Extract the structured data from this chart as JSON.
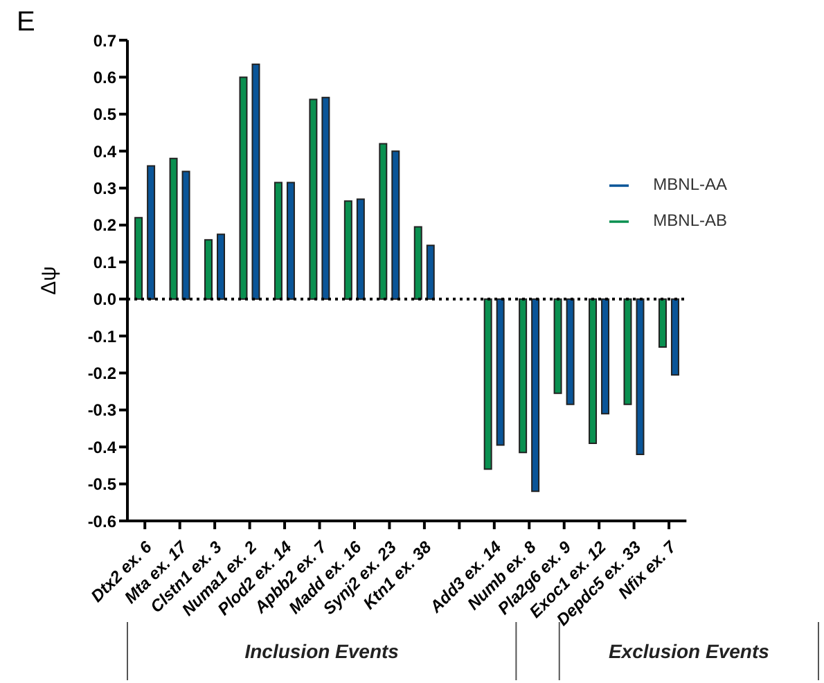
{
  "chart_data": {
    "type": "bar",
    "title": "E",
    "ylabel": "Δψ",
    "categories": [
      "Dtx2 ex. 6",
      "Mta ex. 17",
      "Clstn1 ex. 3",
      "Numa1 ex. 2",
      "Plod2 ex. 14",
      "Apbb2 ex. 7",
      "Madd ex. 16",
      "Synj2 ex. 23",
      "Ktn1 ex. 38",
      null,
      "Add3 ex. 14",
      "Numb ex. 8",
      "Pla2g6 ex. 9",
      "Exoc1 ex. 12",
      "Depdc5 ex. 33",
      "Nfix ex. 7"
    ],
    "series": [
      {
        "name": "MBNL-AB",
        "color": "#0a9050",
        "values": [
          0.22,
          0.38,
          0.16,
          0.6,
          0.315,
          0.54,
          0.265,
          0.42,
          0.195,
          null,
          -0.46,
          -0.415,
          -0.255,
          -0.39,
          -0.285,
          -0.13
        ]
      },
      {
        "name": "MBNL-AA",
        "color": "#0a5598",
        "values": [
          0.36,
          0.345,
          0.175,
          0.635,
          0.315,
          0.545,
          0.27,
          0.4,
          0.145,
          null,
          -0.395,
          -0.52,
          -0.285,
          -0.31,
          -0.42,
          -0.205
        ]
      }
    ],
    "ylim": [
      -0.6,
      0.7
    ],
    "yticks": [
      -0.6,
      -0.5,
      -0.4,
      -0.3,
      -0.2,
      -0.1,
      {
        "value": 0,
        "label": "0.0"
      },
      0.1,
      0.2,
      0.3,
      0.4,
      0.5,
      0.6,
      0.7
    ],
    "ref_lines": [
      {
        "axis": "y",
        "value": 0,
        "line_style": "dotted",
        "color": "#000000"
      }
    ],
    "annotations": [
      "Inclusion Events",
      "Exclusion Events"
    ],
    "legend": "top right",
    "grid": false
  }
}
